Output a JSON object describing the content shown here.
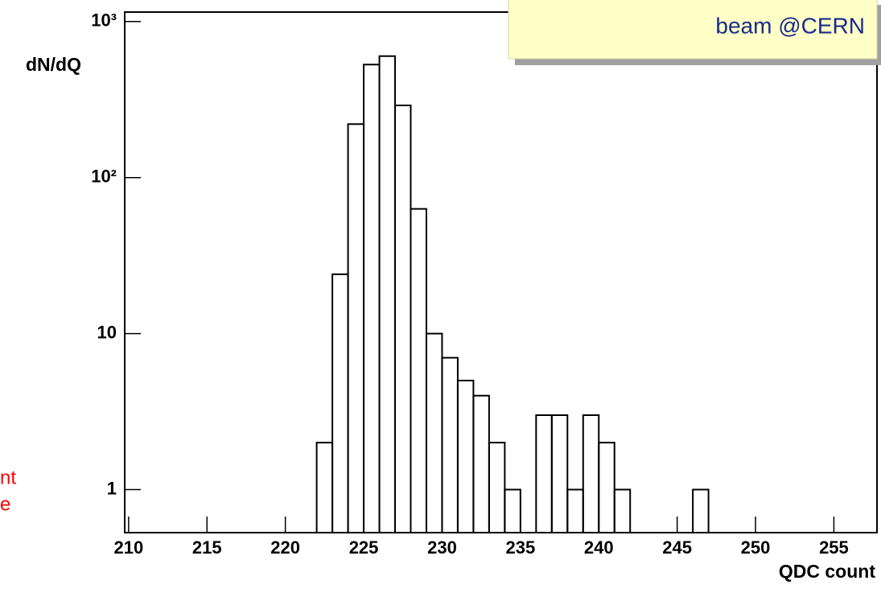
{
  "chart_data": {
    "type": "histogram",
    "x_label": "QDC count",
    "y_label": "dN/dQ",
    "annotations": [
      "beam @CERN",
      "nt",
      "e"
    ],
    "bins": [
      222,
      223,
      224,
      225,
      226,
      227,
      228,
      229,
      230,
      231,
      232,
      233,
      234,
      235,
      236,
      237,
      238,
      239,
      240,
      241,
      242,
      243,
      244,
      245,
      246,
      247
    ],
    "counts": [
      2,
      24,
      220,
      530,
      600,
      290,
      63,
      10,
      7,
      5,
      4,
      2,
      1,
      0,
      3,
      3,
      1,
      3,
      2,
      1,
      0,
      0,
      0,
      0,
      1
    ],
    "color": "#000000",
    "xlim": [
      209.75,
      257.75
    ],
    "xticks": [
      210,
      215,
      220,
      225,
      230,
      235,
      240,
      245,
      250,
      255
    ],
    "ylim": [
      0.53,
      1150
    ],
    "log_y": true,
    "yticks": [
      1,
      10,
      {
        "value": 100,
        "label": "10²"
      },
      {
        "value": 1000,
        "label": "10³"
      }
    ]
  }
}
